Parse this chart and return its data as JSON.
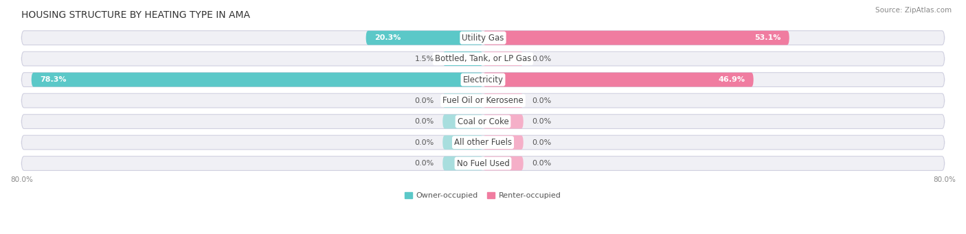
{
  "title": "HOUSING STRUCTURE BY HEATING TYPE IN AMA",
  "source": "Source: ZipAtlas.com",
  "categories": [
    "Utility Gas",
    "Bottled, Tank, or LP Gas",
    "Electricity",
    "Fuel Oil or Kerosene",
    "Coal or Coke",
    "All other Fuels",
    "No Fuel Used"
  ],
  "owner_values": [
    20.3,
    1.5,
    78.3,
    0.0,
    0.0,
    0.0,
    0.0
  ],
  "renter_values": [
    53.1,
    0.0,
    46.9,
    0.0,
    0.0,
    0.0,
    0.0
  ],
  "owner_color": "#5bc8c8",
  "renter_color": "#f07ca0",
  "owner_color_light": "#a8dede",
  "renter_color_light": "#f5afc8",
  "bar_bg_color": "#f0f0f5",
  "bar_border_color": "#d0d0e0",
  "axis_limit": 80.0,
  "label_fontsize": 8.5,
  "title_fontsize": 10,
  "source_fontsize": 7.5,
  "value_fontsize": 8.0,
  "legend_fontsize": 8,
  "axis_label_fontsize": 7.5,
  "bar_height": 0.68,
  "stub_size": 7.0,
  "center_label_color": "#444444",
  "value_label_dark": "#555555",
  "value_label_white": "#ffffff"
}
